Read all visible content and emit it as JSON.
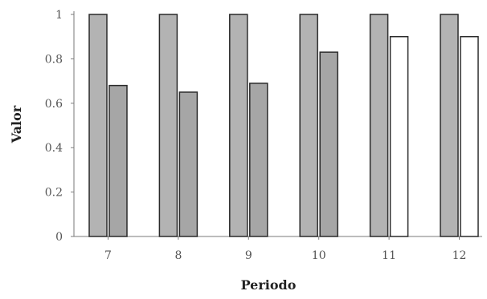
{
  "chart_data": {
    "type": "bar",
    "title": "",
    "xlabel": "Periodo",
    "ylabel": "Valor",
    "categories": [
      "7",
      "8",
      "9",
      "10",
      "11",
      "12"
    ],
    "series": [
      {
        "values": [
          1.0,
          1.0,
          1.0,
          1.0,
          1.0,
          1.0
        ]
      },
      {
        "values": [
          0.68,
          0.65,
          0.69,
          0.83,
          0.9,
          0.9
        ]
      }
    ],
    "ylim": [
      0,
      1
    ],
    "yticks": [
      "0",
      "0.2",
      "0.4",
      "0.6",
      "0.8",
      "1"
    ],
    "grid": false,
    "legend": "none",
    "colors": {
      "series_fills": [
        "#b3b3b3",
        "#a6a6a6"
      ],
      "highlight_fill": "#ffffff",
      "bar_stroke": "#2a2a2a",
      "axis_color": "#7a7a7a"
    }
  }
}
